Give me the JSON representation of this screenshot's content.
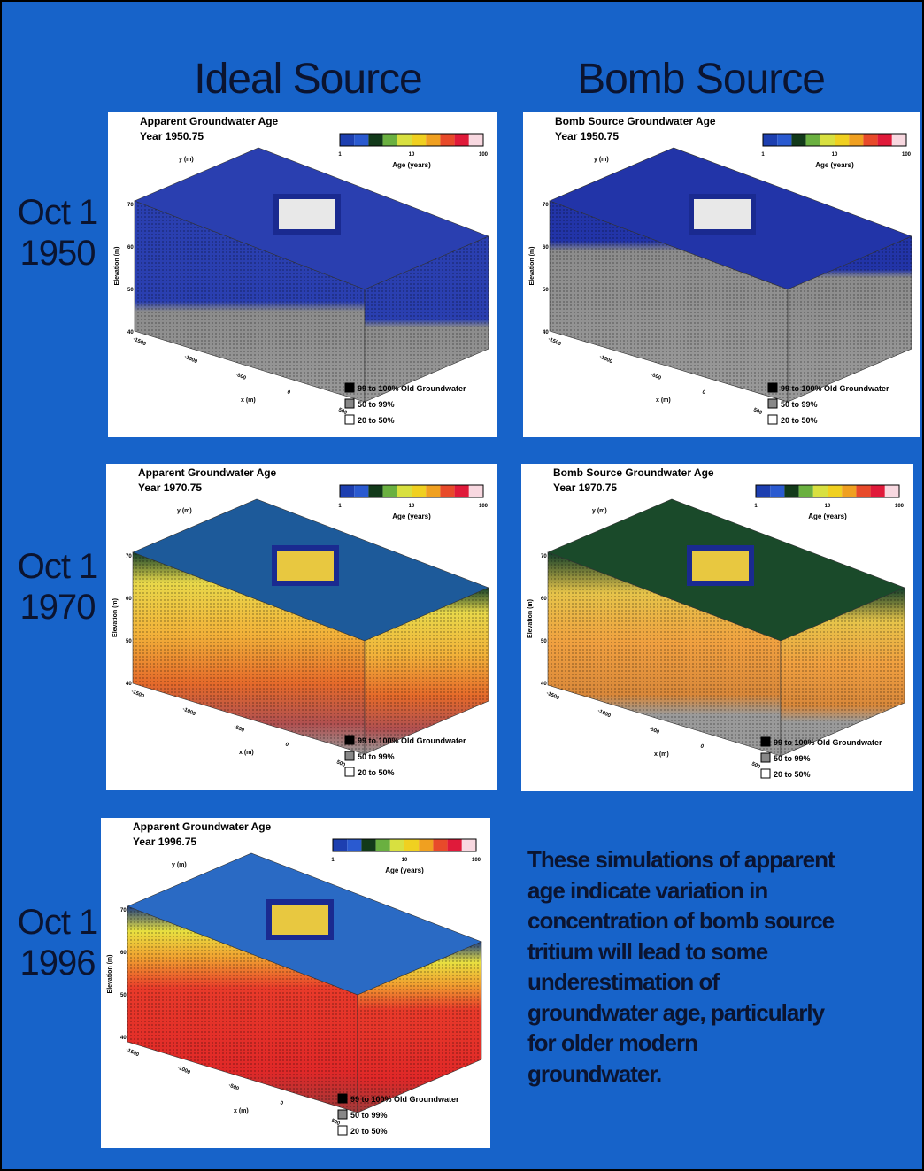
{
  "header": {
    "columns": [
      "Ideal Source",
      "Bomb Source"
    ]
  },
  "rows": [
    {
      "line1": "Oct 1",
      "line2": "1950"
    },
    {
      "line1": "Oct 1",
      "line2": "1970"
    },
    {
      "line1": "Oct 1",
      "line2": "1996"
    }
  ],
  "panels": [
    {
      "title": "Apparent Groundwater Age",
      "year": "Year 1950.75"
    },
    {
      "title": "Bomb Source Groundwater Age",
      "year": "Year 1950.75"
    },
    {
      "title": "Apparent Groundwater Age",
      "year": "Year 1970.75"
    },
    {
      "title": "Bomb Source Groundwater Age",
      "year": "Year 1970.75"
    },
    {
      "title": "Apparent Groundwater Age",
      "year": "Year 1996.75"
    }
  ],
  "colorbar": {
    "ticks": [
      "1",
      "10",
      "100"
    ],
    "label": "Age (years)"
  },
  "legend": [
    "99 to 100% Old Groundwater",
    "50 to 99%",
    "20 to 50%"
  ],
  "axes": {
    "z": "Elevation (m)",
    "x": "x (m)",
    "y": "y (m)",
    "z_ticks": [
      "70",
      "60",
      "50",
      "40"
    ],
    "x_ticks": [
      "-1500",
      "-1000",
      "-500",
      "0",
      "500"
    ]
  },
  "note": {
    "lines": [
      "These simulations of apparent",
      "age indicate variation in",
      "concentration of bomb source",
      "tritium will lead to some",
      "underestimation of",
      "groundwater age, particularly",
      "for older modern",
      "groundwater."
    ]
  }
}
